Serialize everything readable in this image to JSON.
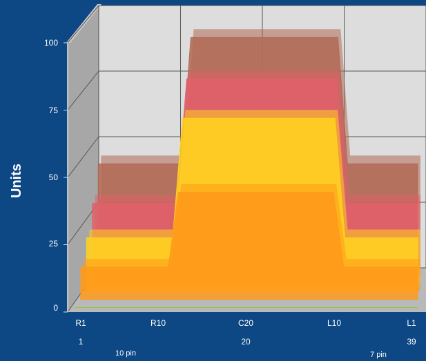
{
  "chart_data": {
    "type": "area",
    "variant": "3d-stacked-area",
    "ylabel": "Units",
    "ylim": [
      0,
      100
    ],
    "yticks": [
      0,
      25,
      50,
      75,
      100
    ],
    "categories": [
      "R1",
      "R10",
      "C20",
      "L10",
      "L1"
    ],
    "category_index": [
      "1",
      "20",
      "39"
    ],
    "pin_labels": [
      "10 pin",
      "7 pin"
    ],
    "x": [
      0,
      0.26,
      0.29,
      0.75,
      0.78,
      1
    ],
    "series": [
      {
        "color": "#8fc646",
        "values": [
          0,
          0,
          0,
          0,
          0,
          0
        ]
      },
      {
        "color": "#ff9a1a",
        "values": [
          12,
          12,
          40,
          40,
          12,
          12
        ]
      },
      {
        "color": "#ffd21e",
        "values": [
          20,
          20,
          65,
          65,
          20,
          20
        ]
      },
      {
        "color": "#e0606a",
        "values": [
          30,
          30,
          77,
          77,
          30,
          30
        ]
      },
      {
        "color": "#b06a55",
        "values": [
          42,
          42,
          90,
          90,
          42,
          42
        ]
      }
    ],
    "grid": true,
    "legend": "none"
  }
}
